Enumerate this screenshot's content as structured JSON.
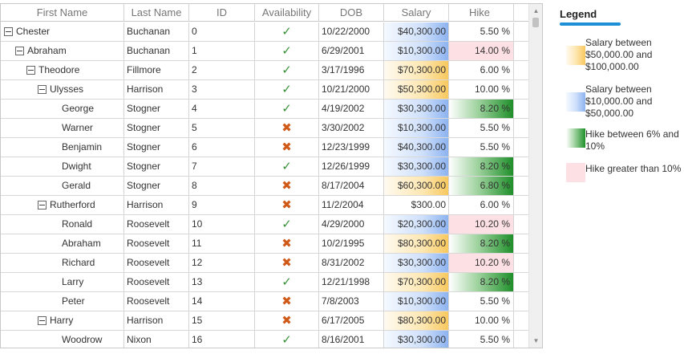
{
  "grid": {
    "columns": [
      "First Name",
      "Last Name",
      "ID",
      "Availability",
      "DOB",
      "Salary",
      "Hike"
    ],
    "rows": [
      {
        "first": "Chester",
        "last": "Buchanan",
        "id": "0",
        "avail": true,
        "dob": "10/22/2000",
        "salary": "$40,300.00",
        "hike": "5.50 %",
        "level": 0,
        "expander": true,
        "sal_style": "blue",
        "hike_style": "none"
      },
      {
        "first": "Abraham",
        "last": "Buchanan",
        "id": "1",
        "avail": true,
        "dob": "6/29/2001",
        "salary": "$10,300.00",
        "hike": "14.00 %",
        "level": 1,
        "expander": true,
        "sal_style": "blue",
        "hike_style": "pink"
      },
      {
        "first": "Theodore",
        "last": "Fillmore",
        "id": "2",
        "avail": true,
        "dob": "3/17/1996",
        "salary": "$70,300.00",
        "hike": "6.00 %",
        "level": 2,
        "expander": true,
        "sal_style": "yellow",
        "hike_style": "none"
      },
      {
        "first": "Ulysses",
        "last": "Harrison",
        "id": "3",
        "avail": true,
        "dob": "10/21/2000",
        "salary": "$50,300.00",
        "hike": "10.00 %",
        "level": 3,
        "expander": true,
        "sal_style": "yellow",
        "hike_style": "none"
      },
      {
        "first": "George",
        "last": "Stogner",
        "id": "4",
        "avail": true,
        "dob": "4/19/2002",
        "salary": "$30,300.00",
        "hike": "8.20 %",
        "level": 4,
        "expander": false,
        "sal_style": "blue",
        "hike_style": "green"
      },
      {
        "first": "Warner",
        "last": "Stogner",
        "id": "5",
        "avail": false,
        "dob": "3/30/2002",
        "salary": "$10,300.00",
        "hike": "5.50 %",
        "level": 4,
        "expander": false,
        "sal_style": "blue",
        "hike_style": "none"
      },
      {
        "first": "Benjamin",
        "last": "Stogner",
        "id": "6",
        "avail": false,
        "dob": "12/23/1999",
        "salary": "$40,300.00",
        "hike": "5.50 %",
        "level": 4,
        "expander": false,
        "sal_style": "blue",
        "hike_style": "none"
      },
      {
        "first": "Dwight",
        "last": "Stogner",
        "id": "7",
        "avail": true,
        "dob": "12/26/1999",
        "salary": "$30,300.00",
        "hike": "8.20 %",
        "level": 4,
        "expander": false,
        "sal_style": "blue",
        "hike_style": "green"
      },
      {
        "first": "Gerald",
        "last": "Stogner",
        "id": "8",
        "avail": false,
        "dob": "8/17/2004",
        "salary": "$60,300.00",
        "hike": "6.80 %",
        "level": 4,
        "expander": false,
        "sal_style": "yellow",
        "hike_style": "green"
      },
      {
        "first": "Rutherford",
        "last": "Harrison",
        "id": "9",
        "avail": false,
        "dob": "11/2/2004",
        "salary": "$300.00",
        "hike": "6.00 %",
        "level": 3,
        "expander": true,
        "sal_style": "none",
        "hike_style": "none"
      },
      {
        "first": "Ronald",
        "last": "Roosevelt",
        "id": "10",
        "avail": true,
        "dob": "4/29/2000",
        "salary": "$20,300.00",
        "hike": "10.20 %",
        "level": 4,
        "expander": false,
        "sal_style": "blue",
        "hike_style": "pink"
      },
      {
        "first": "Abraham",
        "last": "Roosevelt",
        "id": "11",
        "avail": false,
        "dob": "10/2/1995",
        "salary": "$80,300.00",
        "hike": "8.20 %",
        "level": 4,
        "expander": false,
        "sal_style": "yellow",
        "hike_style": "green"
      },
      {
        "first": "Richard",
        "last": "Roosevelt",
        "id": "12",
        "avail": false,
        "dob": "8/31/2002",
        "salary": "$30,300.00",
        "hike": "10.20 %",
        "level": 4,
        "expander": false,
        "sal_style": "blue",
        "hike_style": "pink"
      },
      {
        "first": "Larry",
        "last": "Roosevelt",
        "id": "13",
        "avail": true,
        "dob": "12/21/1998",
        "salary": "$70,300.00",
        "hike": "8.20 %",
        "level": 4,
        "expander": false,
        "sal_style": "yellow",
        "hike_style": "green"
      },
      {
        "first": "Peter",
        "last": "Roosevelt",
        "id": "14",
        "avail": false,
        "dob": "7/8/2003",
        "salary": "$10,300.00",
        "hike": "5.50 %",
        "level": 4,
        "expander": false,
        "sal_style": "blue",
        "hike_style": "none"
      },
      {
        "first": "Harry",
        "last": "Harrison",
        "id": "15",
        "avail": false,
        "dob": "6/17/2005",
        "salary": "$80,300.00",
        "hike": "10.00 %",
        "level": 3,
        "expander": true,
        "sal_style": "yellow",
        "hike_style": "none"
      },
      {
        "first": "Woodrow",
        "last": "Nixon",
        "id": "16",
        "avail": true,
        "dob": "8/16/2001",
        "salary": "$30,300.00",
        "hike": "5.50 %",
        "level": 4,
        "expander": false,
        "sal_style": "blue",
        "hike_style": "none"
      }
    ]
  },
  "legend": {
    "title": "Legend",
    "items": [
      {
        "style": "yellow",
        "text": "Salary between $50,000.00 and $100,000.00"
      },
      {
        "style": "blue",
        "text": "Salary between $10,000.00 and $50,000.00"
      },
      {
        "style": "green",
        "text": "Hike between 6% and 10%"
      },
      {
        "style": "pink",
        "text": "Hike greater than 10%"
      }
    ]
  },
  "colors": {
    "yellow": "#f8c85e",
    "blue": "#8db3f0",
    "green": "#1f8f2a",
    "pink": "#fde0e4",
    "check": "#3a8f3a",
    "cross": "#d05a1a",
    "legend_accent": "#1c8fd6"
  },
  "icons": {
    "available": "check-icon",
    "unavailable": "cross-icon",
    "expander": "minus-box-icon"
  }
}
